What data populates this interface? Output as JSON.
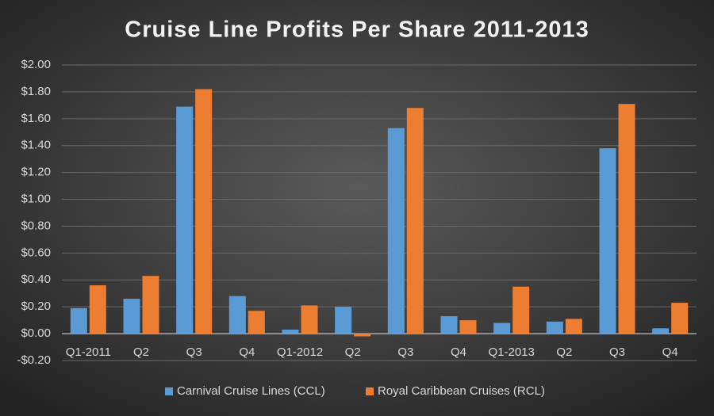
{
  "chart_data": {
    "type": "bar",
    "title": "Cruise Line Profits Per Share 2011-2013",
    "categories": [
      "Q1-2011",
      "Q2",
      "Q3",
      "Q4",
      "Q1-2012",
      "Q2",
      "Q3",
      "Q4",
      "Q1-2013",
      "Q2",
      "Q3",
      "Q4"
    ],
    "series": [
      {
        "name": "Carnival Cruise Lines (CCL)",
        "color": "#5b9bd5",
        "values": [
          0.19,
          0.26,
          1.69,
          0.28,
          0.03,
          0.2,
          1.53,
          0.13,
          0.08,
          0.09,
          1.38,
          0.04
        ]
      },
      {
        "name": "Royal Caribbean Cruises (RCL)",
        "color": "#ed7d31",
        "values": [
          0.36,
          0.43,
          1.82,
          0.17,
          0.21,
          -0.02,
          1.68,
          0.1,
          0.35,
          0.11,
          1.71,
          0.23
        ]
      }
    ],
    "ylim": [
      -0.2,
      2.0
    ],
    "yticks": [
      {
        "value": -0.2,
        "label": "-$0.20"
      },
      {
        "value": 0,
        "label": "$0.00"
      },
      {
        "value": 0.2,
        "label": "$0.20"
      },
      {
        "value": 0.4,
        "label": "$0.40"
      },
      {
        "value": 0.6,
        "label": "$0.60"
      },
      {
        "value": 0.8,
        "label": "$0.80"
      },
      {
        "value": 1.0,
        "label": "$1.00"
      },
      {
        "value": 1.2,
        "label": "$1.20"
      },
      {
        "value": 1.4,
        "label": "$1.40"
      },
      {
        "value": 1.6,
        "label": "$1.60"
      },
      {
        "value": 1.8,
        "label": "$1.80"
      },
      {
        "value": 2.0,
        "label": "$2.00"
      }
    ],
    "grid": true,
    "legend": "bottom"
  }
}
